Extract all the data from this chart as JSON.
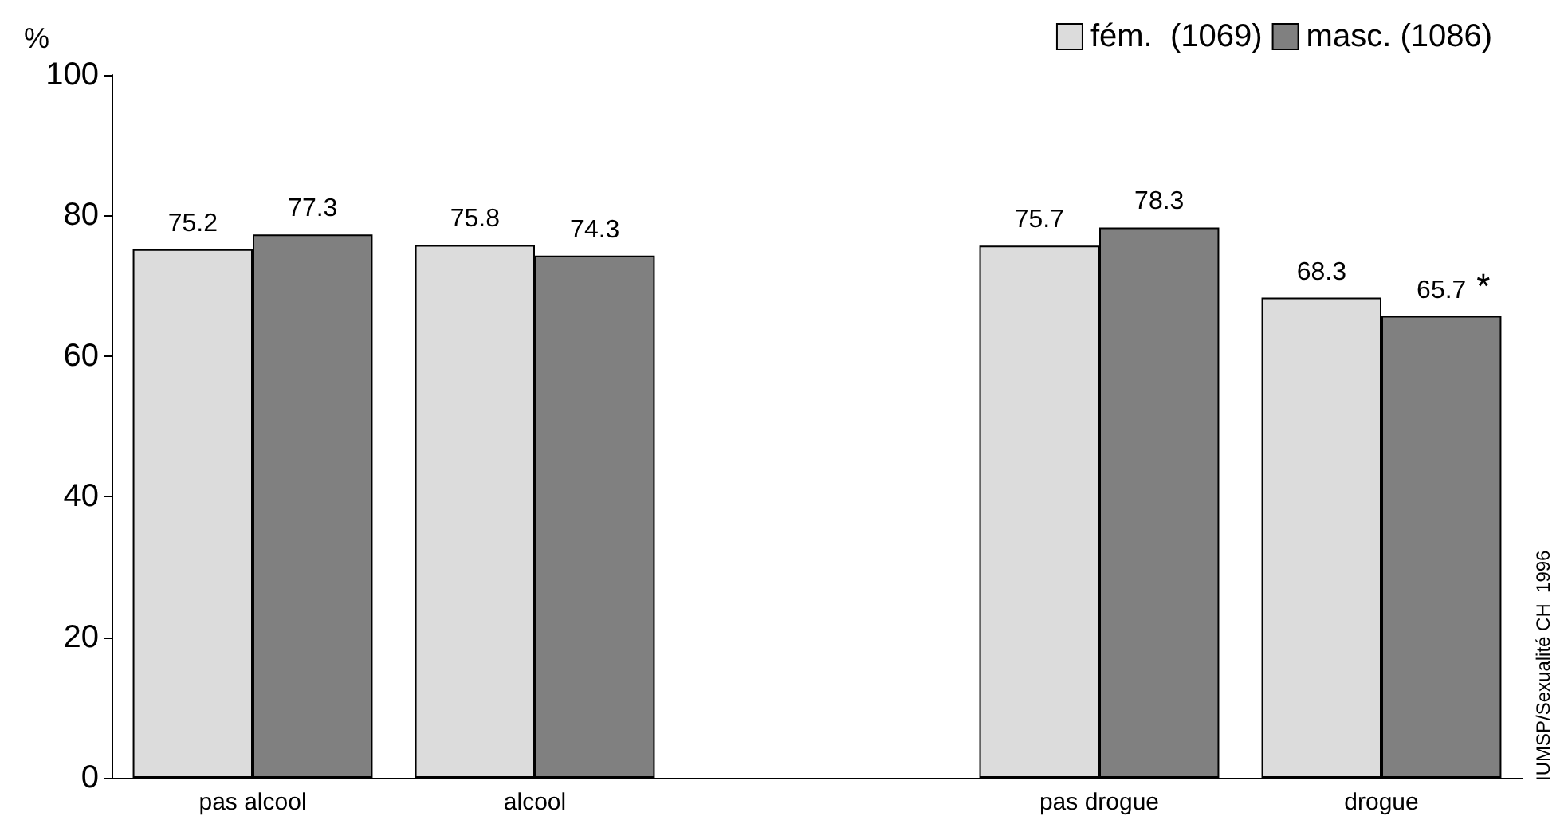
{
  "chart_data": {
    "type": "bar",
    "ylabel": "%",
    "categories": [
      "pas alcool",
      "alcool",
      null,
      "pas drogue",
      "drogue"
    ],
    "series": [
      {
        "name": "fém.  (1069)",
        "color": "#dcdcdc",
        "values": [
          75.2,
          75.8,
          null,
          75.7,
          68.3
        ]
      },
      {
        "name": "masc. (1086)",
        "color": "#808080",
        "values": [
          77.3,
          74.3,
          null,
          78.3,
          65.7
        ]
      }
    ],
    "ylim": [
      0,
      100
    ],
    "yticks": [
      0,
      20,
      40,
      60,
      80,
      100
    ],
    "grid": false,
    "legend": "top right",
    "data_labels": true,
    "annotations": [
      {
        "text": "*",
        "x": "drogue",
        "y": 65.7
      },
      "IUMSP/Sexualité CH  1996"
    ]
  }
}
